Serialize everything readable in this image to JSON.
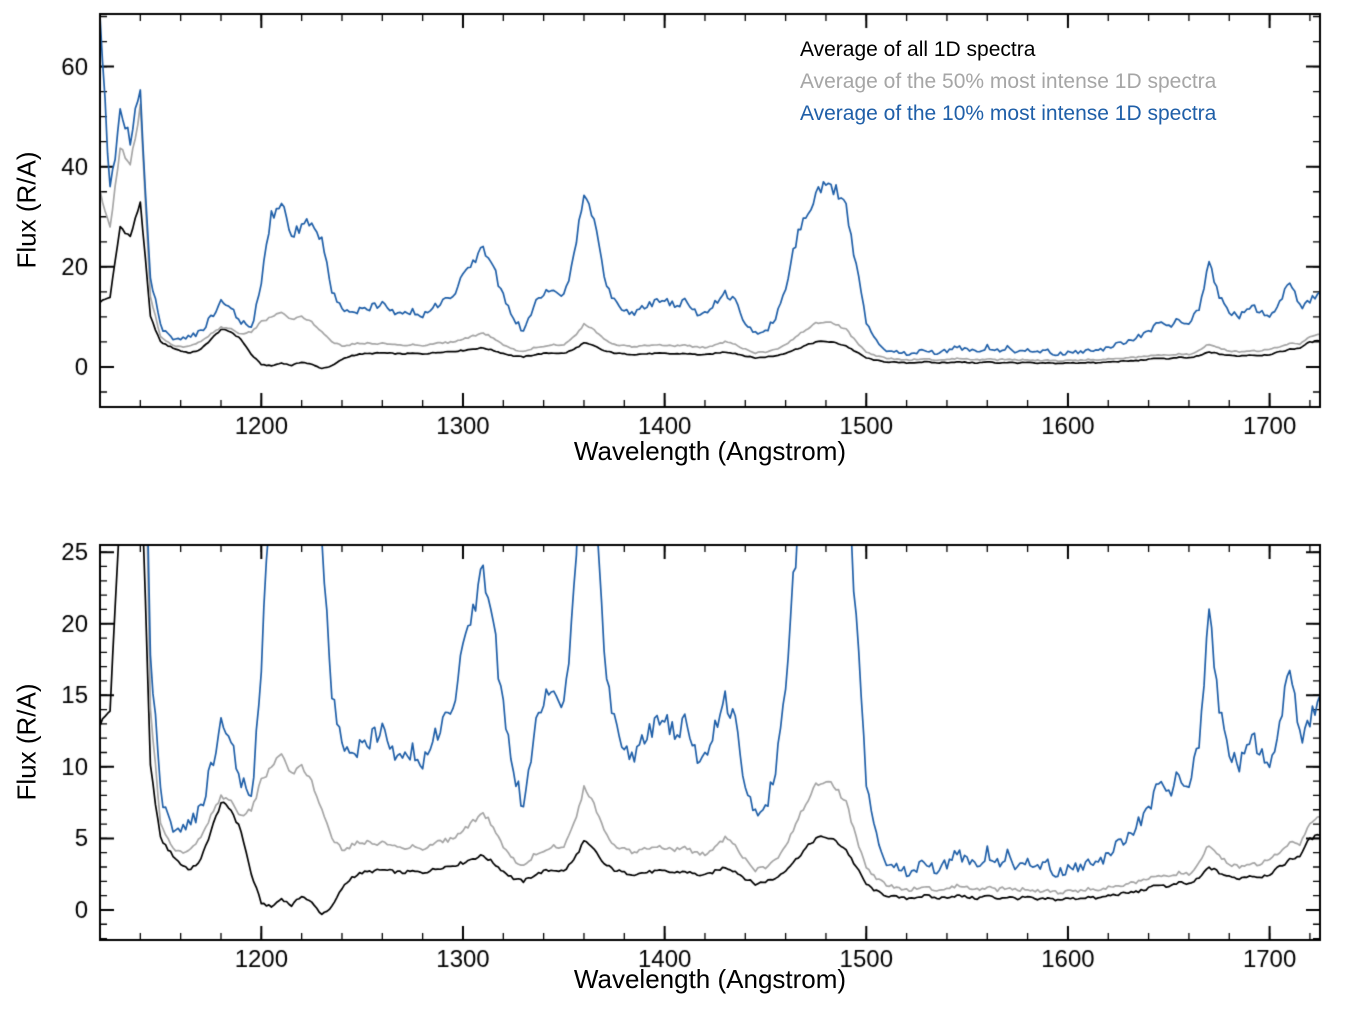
{
  "figure": {
    "background": "#ffffff"
  },
  "chart_data": {
    "type": "line",
    "title": "",
    "xlabel": "Wavelength (Angstrom)",
    "ylabel": "Flux (R/A)",
    "xlim": [
      1120,
      1725
    ],
    "grid": false,
    "legend": {
      "position": "upper right"
    },
    "x": [
      1120,
      1125,
      1130,
      1135,
      1140,
      1145,
      1150,
      1155,
      1160,
      1165,
      1170,
      1175,
      1180,
      1185,
      1190,
      1195,
      1200,
      1205,
      1210,
      1215,
      1220,
      1225,
      1230,
      1235,
      1240,
      1245,
      1250,
      1255,
      1260,
      1265,
      1270,
      1275,
      1280,
      1285,
      1290,
      1295,
      1300,
      1305,
      1310,
      1315,
      1320,
      1325,
      1330,
      1335,
      1340,
      1345,
      1350,
      1355,
      1360,
      1365,
      1370,
      1375,
      1380,
      1385,
      1390,
      1395,
      1400,
      1405,
      1410,
      1415,
      1420,
      1425,
      1430,
      1435,
      1440,
      1445,
      1450,
      1455,
      1460,
      1465,
      1470,
      1475,
      1480,
      1485,
      1490,
      1495,
      1500,
      1505,
      1510,
      1515,
      1520,
      1525,
      1530,
      1535,
      1540,
      1545,
      1550,
      1555,
      1560,
      1565,
      1570,
      1575,
      1580,
      1585,
      1590,
      1595,
      1600,
      1605,
      1610,
      1615,
      1620,
      1625,
      1630,
      1635,
      1640,
      1645,
      1650,
      1655,
      1660,
      1665,
      1670,
      1675,
      1680,
      1685,
      1690,
      1695,
      1700,
      1705,
      1710,
      1715,
      1720,
      1725
    ],
    "series": [
      {
        "name": "Average of all 1D spectra",
        "color": "#000000",
        "noise_base": 0.08,
        "noise_scale": 0.01,
        "values": [
          13,
          14,
          28,
          26,
          33,
          10,
          5,
          4,
          3.2,
          2.8,
          3.5,
          5.5,
          7.5,
          7,
          5.5,
          2.5,
          0.5,
          0.2,
          0.8,
          0.3,
          1.0,
          0.5,
          -0.3,
          0.2,
          1.5,
          2.3,
          2.6,
          2.7,
          2.8,
          2.7,
          2.6,
          2.7,
          2.6,
          2.8,
          3.0,
          3.1,
          3.3,
          3.6,
          3.8,
          3.3,
          2.7,
          2.2,
          2.0,
          2.4,
          2.7,
          2.8,
          2.7,
          3.5,
          4.8,
          4.2,
          3.2,
          2.8,
          2.6,
          2.5,
          2.6,
          2.7,
          2.7,
          2.6,
          2.7,
          2.5,
          2.4,
          2.7,
          3.0,
          2.7,
          2.2,
          1.8,
          2.0,
          2.2,
          2.8,
          3.5,
          4.3,
          5.0,
          5.1,
          4.8,
          4.2,
          3.0,
          1.8,
          1.3,
          1.0,
          0.9,
          0.8,
          0.9,
          1.0,
          0.8,
          0.9,
          1.0,
          0.9,
          0.8,
          1.0,
          0.8,
          0.9,
          0.8,
          0.9,
          0.7,
          0.8,
          0.7,
          0.8,
          0.8,
          0.9,
          0.8,
          1.0,
          1.1,
          1.2,
          1.3,
          1.5,
          1.8,
          1.6,
          1.9,
          1.8,
          2.2,
          3.0,
          2.6,
          2.3,
          2.2,
          2.4,
          2.3,
          2.5,
          3.0,
          3.5,
          3.8,
          5.0,
          5.2
        ]
      },
      {
        "name": "Average of the 50% most intense 1D spectra",
        "color": "#a6a6a6",
        "noise_base": 0.1,
        "noise_scale": 0.012,
        "values": [
          35,
          28,
          44,
          40,
          52,
          14,
          6,
          4.5,
          4.0,
          4.2,
          5.0,
          6.5,
          8.0,
          7.5,
          6.5,
          7.0,
          9.0,
          10.0,
          10.8,
          9.5,
          10.0,
          9.0,
          7.0,
          5.0,
          4.2,
          4.5,
          4.8,
          4.6,
          4.7,
          4.5,
          4.3,
          4.4,
          4.2,
          4.6,
          4.8,
          5.0,
          5.5,
          6.2,
          6.8,
          5.8,
          4.5,
          3.5,
          3.0,
          3.8,
          4.2,
          4.5,
          4.3,
          6.0,
          8.5,
          7.5,
          5.5,
          4.5,
          4.2,
          4.0,
          4.2,
          4.4,
          4.3,
          4.2,
          4.3,
          4.0,
          3.9,
          4.4,
          5.0,
          4.5,
          3.5,
          2.8,
          3.0,
          3.5,
          4.5,
          6.0,
          7.5,
          8.8,
          9.0,
          8.5,
          7.5,
          5.0,
          3.0,
          2.2,
          1.8,
          1.5,
          1.4,
          1.5,
          1.6,
          1.4,
          1.5,
          1.7,
          1.6,
          1.4,
          1.6,
          1.4,
          1.6,
          1.4,
          1.5,
          1.3,
          1.4,
          1.2,
          1.3,
          1.3,
          1.5,
          1.4,
          1.6,
          1.7,
          1.8,
          2.0,
          2.2,
          2.5,
          2.3,
          2.6,
          2.5,
          3.2,
          4.6,
          3.8,
          3.2,
          3.0,
          3.3,
          3.2,
          3.5,
          4.0,
          4.8,
          4.5,
          6.0,
          6.5
        ]
      },
      {
        "name": "Average of the 10% most intense 1D spectra",
        "color": "#1f5fa8",
        "noise_base": 0.35,
        "noise_scale": 0.03,
        "values": [
          68,
          36,
          50,
          45,
          55,
          18,
          8,
          6,
          5.5,
          6,
          7,
          10,
          13,
          12,
          9,
          7.5,
          17,
          30,
          33,
          26,
          28,
          29,
          25,
          15,
          12,
          11,
          11.5,
          12,
          12.5,
          11,
          10.5,
          11,
          10,
          12,
          13,
          14,
          19,
          21,
          24,
          20,
          14,
          10,
          7,
          12,
          15,
          15.5,
          14,
          22,
          35,
          30,
          18,
          13,
          11,
          10.5,
          12,
          13,
          13.5,
          12.5,
          13,
          11,
          10.5,
          13,
          15,
          13,
          9,
          6.5,
          7,
          10,
          16,
          25,
          31,
          34,
          37.5,
          35,
          32,
          20,
          9,
          5,
          3.5,
          3,
          2.5,
          3,
          3.5,
          2.8,
          3.2,
          4,
          3.5,
          3,
          4,
          3.2,
          3.8,
          3,
          3.5,
          2.8,
          3.2,
          2.5,
          3,
          2.8,
          3.5,
          3,
          4,
          4.5,
          5,
          6,
          7,
          9,
          8,
          9.5,
          9,
          12,
          21,
          14,
          11,
          10,
          12,
          11.5,
          10,
          13,
          17.5,
          12,
          13,
          15
        ]
      }
    ],
    "panels": [
      {
        "name": "top",
        "ylim": [
          -8,
          70.5
        ],
        "yticks": [
          0,
          20,
          40,
          60
        ],
        "y_minor_step": 5,
        "xticks": [
          1200,
          1300,
          1400,
          1500,
          1600,
          1700
        ],
        "x_minor_step": 20,
        "legend": true
      },
      {
        "name": "bottom",
        "ylim": [
          -2.1,
          25.5
        ],
        "yticks": [
          0,
          5,
          10,
          15,
          20,
          25
        ],
        "y_minor_step": 1,
        "xticks": [
          1200,
          1300,
          1400,
          1500,
          1600,
          1700
        ],
        "x_minor_step": 20,
        "legend": false
      }
    ]
  }
}
